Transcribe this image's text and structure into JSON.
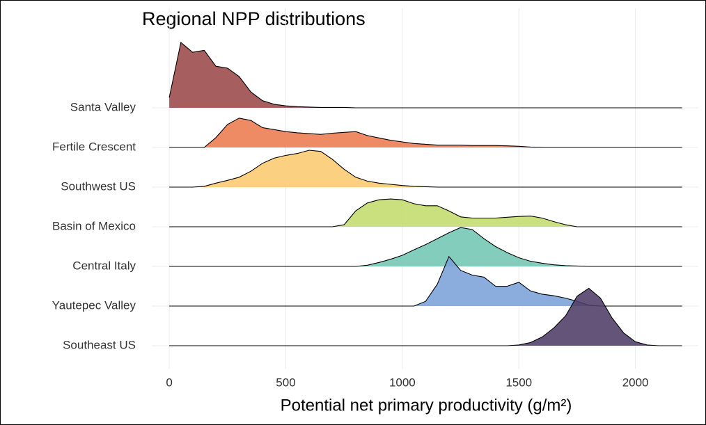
{
  "chart_data": {
    "type": "ridgeline",
    "title": "Regional NPP distributions",
    "x_label": "Potential net primary productivity (g/m²)",
    "xlim": [
      -75,
      2270
    ],
    "xticks": [
      0,
      500,
      1000,
      1500,
      2000
    ],
    "grid": true,
    "x": [
      0,
      50,
      100,
      150,
      200,
      250,
      300,
      350,
      400,
      450,
      500,
      550,
      600,
      650,
      700,
      750,
      800,
      850,
      900,
      950,
      1000,
      1050,
      1100,
      1150,
      1200,
      1250,
      1300,
      1350,
      1400,
      1450,
      1500,
      1550,
      1600,
      1650,
      1700,
      1750,
      1800,
      1850,
      1900,
      1950,
      2000,
      2050,
      2100,
      2150,
      2200
    ],
    "series": [
      {
        "name": "Santa Valley",
        "color": "#9a4848",
        "values": [
          0.26,
          1.65,
          1.4,
          1.45,
          1.05,
          1.0,
          0.79,
          0.4,
          0.18,
          0.09,
          0.05,
          0.03,
          0.02,
          0.01,
          0.01,
          0.01,
          0,
          0,
          0,
          0,
          0,
          0,
          0,
          0,
          0,
          0,
          0,
          0,
          0,
          0,
          0,
          0,
          0,
          0,
          0,
          0,
          0,
          0,
          0,
          0,
          0,
          0,
          0,
          0,
          0
        ]
      },
      {
        "name": "Fertile Crescent",
        "color": "#ec7a4f",
        "values": [
          0,
          0,
          0,
          0,
          0.25,
          0.58,
          0.74,
          0.68,
          0.5,
          0.45,
          0.4,
          0.37,
          0.35,
          0.33,
          0.36,
          0.38,
          0.4,
          0.3,
          0.24,
          0.18,
          0.14,
          0.1,
          0.08,
          0.06,
          0.06,
          0.06,
          0.05,
          0.05,
          0.05,
          0.04,
          0.03,
          0.01,
          0,
          0,
          0,
          0,
          0,
          0,
          0,
          0,
          0,
          0,
          0,
          0,
          0
        ]
      },
      {
        "name": "Southwest US",
        "color": "#fbca70",
        "values": [
          0,
          0,
          0,
          0.02,
          0.1,
          0.17,
          0.25,
          0.4,
          0.6,
          0.73,
          0.8,
          0.85,
          0.93,
          0.9,
          0.7,
          0.45,
          0.25,
          0.15,
          0.1,
          0.07,
          0.04,
          0.02,
          0.01,
          0,
          0,
          0,
          0,
          0,
          0,
          0,
          0,
          0,
          0,
          0,
          0,
          0,
          0,
          0,
          0,
          0,
          0,
          0,
          0,
          0,
          0
        ]
      },
      {
        "name": "Basin of Mexico",
        "color": "#c3db6c",
        "values": [
          0,
          0,
          0,
          0,
          0,
          0,
          0,
          0,
          0,
          0,
          0,
          0,
          0,
          0,
          0,
          0.05,
          0.4,
          0.6,
          0.68,
          0.7,
          0.68,
          0.58,
          0.53,
          0.53,
          0.4,
          0.25,
          0.22,
          0.22,
          0.22,
          0.24,
          0.26,
          0.27,
          0.22,
          0.13,
          0.05,
          0,
          0,
          0,
          0,
          0,
          0,
          0,
          0,
          0,
          0
        ]
      },
      {
        "name": "Central Italy",
        "color": "#72c6b4",
        "values": [
          0,
          0,
          0,
          0,
          0,
          0,
          0,
          0,
          0,
          0,
          0,
          0,
          0,
          0,
          0,
          0,
          0,
          0.03,
          0.1,
          0.18,
          0.28,
          0.42,
          0.55,
          0.7,
          0.85,
          0.98,
          0.93,
          0.7,
          0.5,
          0.35,
          0.22,
          0.13,
          0.08,
          0.04,
          0.02,
          0.01,
          0,
          0,
          0,
          0,
          0,
          0,
          0,
          0,
          0
        ]
      },
      {
        "name": "Yautepec Valley",
        "color": "#7aa2da",
        "values": [
          0,
          0,
          0,
          0,
          0,
          0,
          0,
          0,
          0,
          0,
          0,
          0,
          0,
          0,
          0,
          0,
          0,
          0,
          0,
          0,
          0,
          0,
          0.12,
          0.55,
          1.25,
          0.9,
          0.78,
          0.73,
          0.5,
          0.5,
          0.6,
          0.38,
          0.3,
          0.26,
          0.2,
          0.12,
          0.02,
          0,
          0,
          0,
          0,
          0,
          0,
          0,
          0
        ]
      },
      {
        "name": "Southeast US",
        "color": "#4e3c66",
        "values": [
          0,
          0,
          0,
          0,
          0,
          0,
          0,
          0,
          0,
          0,
          0,
          0,
          0,
          0,
          0,
          0,
          0,
          0,
          0,
          0,
          0,
          0,
          0,
          0,
          0,
          0,
          0,
          0,
          0,
          0,
          0.02,
          0.08,
          0.22,
          0.45,
          0.75,
          1.25,
          1.45,
          1.2,
          0.7,
          0.32,
          0.1,
          0.02,
          0,
          0,
          0
        ]
      }
    ]
  }
}
